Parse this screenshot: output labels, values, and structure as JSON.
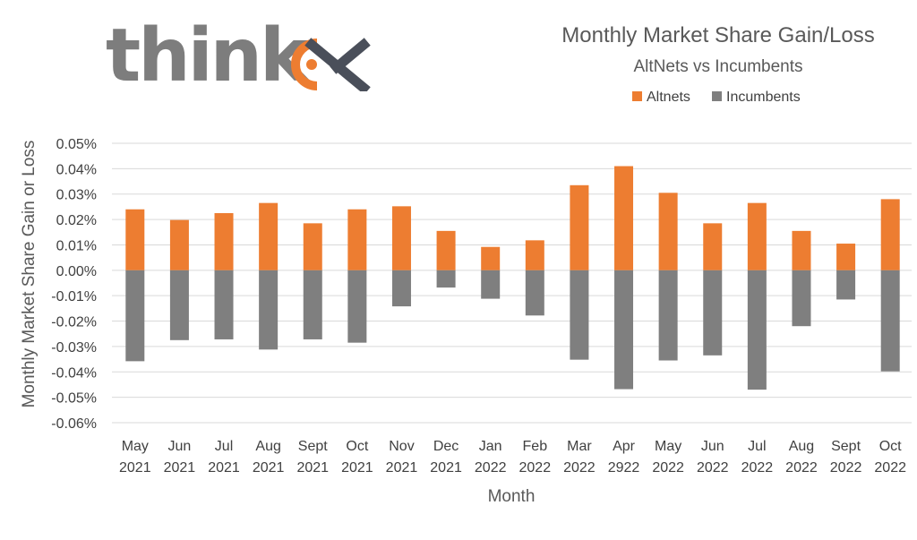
{
  "logo": {
    "text": "think",
    "mark_name": "think-x-logo-mark"
  },
  "chart_data": {
    "type": "bar",
    "title": "Monthly Market Share Gain/Loss",
    "subtitle": "AltNets vs Incumbents",
    "xlabel": "Month",
    "ylabel": "Monthly Market Share Gain or Loss",
    "ylim": [
      -0.06,
      0.05
    ],
    "yticks": [
      "0.05%",
      "0.04%",
      "0.03%",
      "0.02%",
      "0.01%",
      "0.00%",
      "-0.01%",
      "-0.02%",
      "-0.03%",
      "-0.04%",
      "-0.05%",
      "-0.06%"
    ],
    "ytick_values": [
      0.05,
      0.04,
      0.03,
      0.02,
      0.01,
      0.0,
      -0.01,
      -0.02,
      -0.03,
      -0.04,
      -0.05,
      -0.06
    ],
    "grid": true,
    "legend_position": "top",
    "categories": [
      [
        "May",
        "2021"
      ],
      [
        "Jun",
        "2021"
      ],
      [
        "Jul",
        "2021"
      ],
      [
        "Aug",
        "2021"
      ],
      [
        "Sept",
        "2021"
      ],
      [
        "Oct",
        "2021"
      ],
      [
        "Nov",
        "2021"
      ],
      [
        "Dec",
        "2021"
      ],
      [
        "Jan",
        "2022"
      ],
      [
        "Feb",
        "2022"
      ],
      [
        "Mar",
        "2022"
      ],
      [
        "Apr",
        "2922"
      ],
      [
        "May",
        "2022"
      ],
      [
        "Jun",
        "2022"
      ],
      [
        "Jul",
        "2022"
      ],
      [
        "Aug",
        "2022"
      ],
      [
        "Sept",
        "2022"
      ],
      [
        "Oct",
        "2022"
      ]
    ],
    "series": [
      {
        "name": "Altnets",
        "color": "#ed7d31",
        "values": [
          0.024,
          0.0198,
          0.0225,
          0.0265,
          0.0185,
          0.024,
          0.0252,
          0.0155,
          0.0092,
          0.0118,
          0.0335,
          0.041,
          0.0305,
          0.0185,
          0.0265,
          0.0155,
          0.0105,
          0.028
        ]
      },
      {
        "name": "Incumbents",
        "color": "#7f7f7f",
        "values": [
          -0.0358,
          -0.0275,
          -0.0272,
          -0.0312,
          -0.0272,
          -0.0285,
          -0.0142,
          -0.0068,
          -0.0112,
          -0.0178,
          -0.0352,
          -0.0468,
          -0.0355,
          -0.0335,
          -0.047,
          -0.022,
          -0.0115,
          -0.0398
        ]
      }
    ]
  }
}
